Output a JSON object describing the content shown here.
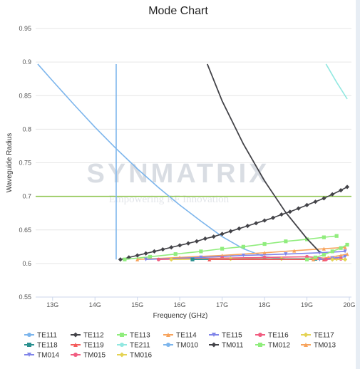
{
  "chart_data": {
    "type": "line",
    "title": "Mode Chart",
    "xlabel": "Frequency (GHz)",
    "ylabel": "Waveguide Radius",
    "xlim": [
      12.6,
      20.05
    ],
    "ylim": [
      0.55,
      0.95
    ],
    "x_ticks": [
      13,
      14,
      15,
      16,
      17,
      18,
      19,
      20
    ],
    "x_tick_labels": [
      "13G",
      "14G",
      "15G",
      "16G",
      "17G",
      "18G",
      "19G",
      "20G"
    ],
    "y_ticks": [
      0.55,
      0.6,
      0.65,
      0.7,
      0.75,
      0.8,
      0.85,
      0.9,
      0.95
    ],
    "y_tick_labels": [
      "0.55",
      "0.6",
      "0.65",
      "0.7",
      "0.75",
      "0.8",
      "0.85",
      "0.9",
      "0.95"
    ],
    "grid": true,
    "legend_position": "bottom",
    "watermark": {
      "title": "SYNMATRIX",
      "tagline": "Empowering RF Innovation"
    },
    "reference_line": {
      "y": 0.7,
      "color": "#8bc34a"
    },
    "series": [
      {
        "name": "TE111",
        "color": "#7cb5ec",
        "marker": "circle",
        "points": [
          [
            12.65,
            0.897
          ],
          [
            13.0,
            0.872
          ],
          [
            13.5,
            0.837
          ],
          [
            14.0,
            0.803
          ],
          [
            14.5,
            0.771
          ],
          [
            15.0,
            0.741
          ],
          [
            15.5,
            0.713
          ],
          [
            16.0,
            0.687
          ],
          [
            16.5,
            0.663
          ],
          [
            17.0,
            0.64
          ],
          [
            17.5,
            0.622
          ],
          [
            18.0,
            0.61
          ],
          [
            18.5,
            0.607
          ]
        ]
      },
      {
        "name": "TE112",
        "color": "#434348",
        "marker": "diamond",
        "points": [
          [
            14.6,
            0.606
          ],
          [
            14.8,
            0.609
          ],
          [
            15.0,
            0.612
          ],
          [
            15.2,
            0.615
          ],
          [
            15.4,
            0.618
          ],
          [
            15.6,
            0.621
          ],
          [
            15.8,
            0.624
          ],
          [
            16.0,
            0.627
          ],
          [
            16.2,
            0.63
          ],
          [
            16.4,
            0.633
          ],
          [
            16.6,
            0.637
          ],
          [
            16.8,
            0.64
          ],
          [
            17.0,
            0.644
          ],
          [
            17.2,
            0.648
          ],
          [
            17.4,
            0.652
          ],
          [
            17.6,
            0.656
          ],
          [
            17.8,
            0.66
          ],
          [
            18.0,
            0.664
          ],
          [
            18.2,
            0.668
          ],
          [
            18.4,
            0.673
          ],
          [
            18.6,
            0.677
          ],
          [
            18.8,
            0.682
          ],
          [
            19.0,
            0.687
          ],
          [
            19.2,
            0.692
          ],
          [
            19.4,
            0.697
          ],
          [
            19.6,
            0.703
          ],
          [
            19.8,
            0.709
          ],
          [
            19.95,
            0.714
          ]
        ]
      },
      {
        "name": "TE113",
        "color": "#90ed7d",
        "marker": "square",
        "points": [
          [
            14.7,
            0.606
          ],
          [
            15.3,
            0.61
          ],
          [
            15.9,
            0.614
          ],
          [
            16.5,
            0.618
          ],
          [
            17.0,
            0.622
          ],
          [
            17.5,
            0.625
          ],
          [
            18.0,
            0.629
          ],
          [
            18.5,
            0.633
          ],
          [
            19.0,
            0.636
          ],
          [
            19.4,
            0.639
          ],
          [
            19.7,
            0.641
          ]
        ]
      },
      {
        "name": "TE114",
        "color": "#f7a35c",
        "marker": "triangle",
        "points": [
          [
            15.0,
            0.606
          ],
          [
            16.0,
            0.609
          ],
          [
            17.0,
            0.612
          ],
          [
            18.0,
            0.616
          ],
          [
            18.7,
            0.619
          ],
          [
            19.4,
            0.622
          ],
          [
            19.9,
            0.624
          ]
        ]
      },
      {
        "name": "TE115",
        "color": "#8085e9",
        "marker": "triangle-down",
        "points": [
          [
            15.2,
            0.606
          ],
          [
            16.5,
            0.609
          ],
          [
            17.5,
            0.612
          ],
          [
            18.5,
            0.614
          ],
          [
            19.3,
            0.616
          ],
          [
            19.9,
            0.618
          ]
        ]
      },
      {
        "name": "TE116",
        "color": "#f15c80",
        "marker": "circle",
        "points": [
          [
            15.5,
            0.606
          ],
          [
            17.0,
            0.608
          ],
          [
            18.0,
            0.609
          ],
          [
            19.0,
            0.61
          ],
          [
            19.6,
            0.607
          ]
        ]
      },
      {
        "name": "TE117",
        "color": "#e4d354",
        "marker": "diamond",
        "points": [
          [
            15.8,
            0.606
          ],
          [
            17.2,
            0.607
          ],
          [
            18.4,
            0.607
          ],
          [
            19.7,
            0.607
          ]
        ]
      },
      {
        "name": "TE118",
        "color": "#2b908f",
        "marker": "square",
        "points": [
          [
            16.3,
            0.606
          ],
          [
            19.2,
            0.607
          ]
        ]
      },
      {
        "name": "TE119",
        "color": "#f45b5b",
        "marker": "triangle",
        "points": [
          [
            16.7,
            0.606
          ],
          [
            19.4,
            0.606
          ]
        ]
      },
      {
        "name": "TE211",
        "color": "#91e8e1",
        "marker": "none",
        "points": [
          [
            19.45,
            0.897
          ],
          [
            19.7,
            0.87
          ],
          [
            19.95,
            0.845
          ]
        ]
      },
      {
        "name": "TM010",
        "color": "#7cb5ec",
        "marker": "circle",
        "points": [
          [
            14.5,
            0.897
          ],
          [
            14.5,
            0.606
          ]
        ]
      },
      {
        "name": "TM011",
        "color": "#434348",
        "marker": "diamond",
        "points": [
          [
            16.65,
            0.897
          ],
          [
            17.0,
            0.842
          ],
          [
            17.5,
            0.778
          ],
          [
            18.0,
            0.723
          ],
          [
            18.5,
            0.676
          ],
          [
            19.0,
            0.637
          ],
          [
            19.3,
            0.617
          ]
        ]
      },
      {
        "name": "TM012",
        "color": "#90ed7d",
        "marker": "square",
        "points": [
          [
            19.0,
            0.606
          ],
          [
            19.2,
            0.609
          ],
          [
            19.4,
            0.613
          ],
          [
            19.6,
            0.618
          ],
          [
            19.8,
            0.623
          ],
          [
            19.95,
            0.628
          ]
        ]
      },
      {
        "name": "TM013",
        "color": "#f7a35c",
        "marker": "triangle",
        "points": [
          [
            19.15,
            0.606
          ],
          [
            19.5,
            0.609
          ],
          [
            19.8,
            0.612
          ],
          [
            19.95,
            0.614
          ]
        ]
      },
      {
        "name": "TM014",
        "color": "#8085e9",
        "marker": "triangle-down",
        "points": [
          [
            19.3,
            0.606
          ],
          [
            19.6,
            0.608
          ],
          [
            19.9,
            0.61
          ]
        ]
      },
      {
        "name": "TM015",
        "color": "#f15c80",
        "marker": "circle",
        "points": [
          [
            19.45,
            0.606
          ],
          [
            19.8,
            0.607
          ]
        ]
      },
      {
        "name": "TM016",
        "color": "#e4d354",
        "marker": "diamond",
        "points": [
          [
            19.6,
            0.606
          ],
          [
            19.9,
            0.606
          ]
        ]
      }
    ]
  }
}
